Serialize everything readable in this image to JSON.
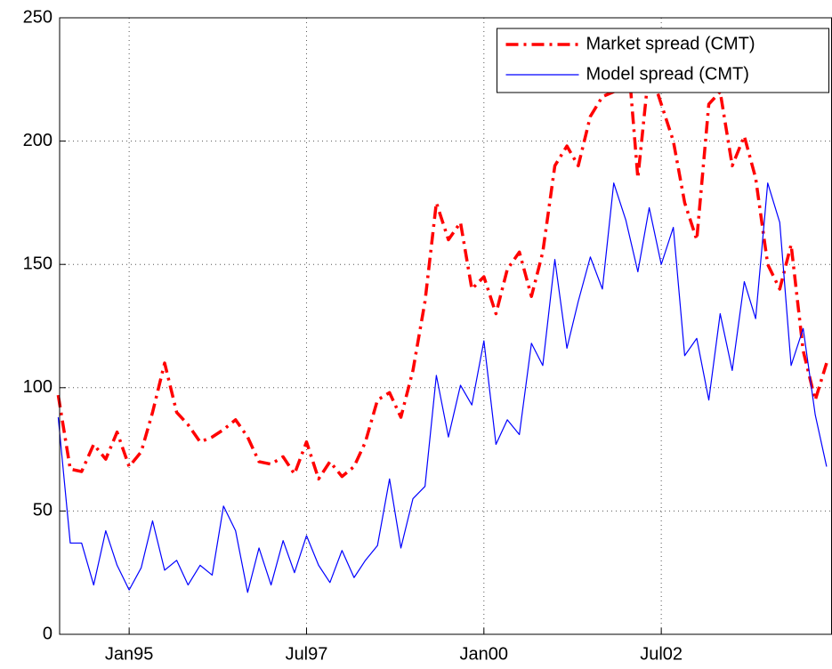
{
  "chart_data": {
    "type": "line",
    "x": [
      1994.0,
      1994.17,
      1994.33,
      1994.5,
      1994.67,
      1994.83,
      1995.0,
      1995.17,
      1995.33,
      1995.5,
      1995.67,
      1995.83,
      1996.0,
      1996.17,
      1996.33,
      1996.5,
      1996.67,
      1996.83,
      1997.0,
      1997.17,
      1997.33,
      1997.5,
      1997.67,
      1997.83,
      1998.0,
      1998.17,
      1998.33,
      1998.5,
      1998.67,
      1998.83,
      1999.0,
      1999.17,
      1999.33,
      1999.5,
      1999.67,
      1999.83,
      2000.0,
      2000.17,
      2000.33,
      2000.5,
      2000.67,
      2000.83,
      2001.0,
      2001.17,
      2001.33,
      2001.5,
      2001.67,
      2001.83,
      2002.0,
      2002.17,
      2002.33,
      2002.5,
      2002.67,
      2002.83,
      2003.0,
      2003.17,
      2003.33,
      2003.5,
      2003.67,
      2003.83,
      2004.0,
      2004.17,
      2004.33,
      2004.5,
      2004.67,
      2004.83
    ],
    "series": [
      {
        "name": "Market spread (CMT)",
        "color": "#ff0000",
        "linestyle": "dashdot",
        "values": [
          97,
          67,
          66,
          77,
          71,
          82,
          68,
          74,
          90,
          110,
          90,
          85,
          78,
          80,
          83,
          87,
          80,
          70,
          69,
          72,
          65,
          78,
          63,
          70,
          64,
          68,
          78,
          95,
          98,
          88,
          107,
          135,
          175,
          160,
          167,
          140,
          145,
          130,
          148,
          155,
          137,
          155,
          190,
          198,
          190,
          210,
          218,
          220,
          245,
          185,
          230,
          215,
          200,
          175,
          160,
          215,
          220,
          190,
          202,
          185,
          150,
          140,
          158,
          115,
          95,
          110
        ]
      },
      {
        "name": "Model spread (CMT)",
        "color": "#0000ff",
        "linestyle": "solid",
        "values": [
          88,
          37,
          37,
          20,
          42,
          28,
          18,
          27,
          46,
          26,
          30,
          20,
          28,
          24,
          52,
          42,
          17,
          35,
          20,
          38,
          25,
          40,
          28,
          21,
          34,
          23,
          30,
          36,
          63,
          35,
          55,
          60,
          105,
          80,
          101,
          93,
          119,
          77,
          87,
          81,
          118,
          109,
          152,
          116,
          135,
          153,
          140,
          183,
          168,
          147,
          173,
          150,
          165,
          113,
          120,
          95,
          130,
          107,
          143,
          128,
          183,
          167,
          109,
          124,
          89,
          68
        ]
      }
    ],
    "xlim": [
      1994.02,
      2004.9
    ],
    "xticks": [
      {
        "value": 1995.0,
        "label": "Jan95"
      },
      {
        "value": 1997.5,
        "label": "Jul97"
      },
      {
        "value": 2000.0,
        "label": "Jan00"
      },
      {
        "value": 2002.5,
        "label": "Jul02"
      }
    ],
    "ylim": [
      0,
      250
    ],
    "yticks": [
      0,
      50,
      100,
      150,
      200,
      250
    ],
    "grid": true,
    "legend": "upper right"
  }
}
